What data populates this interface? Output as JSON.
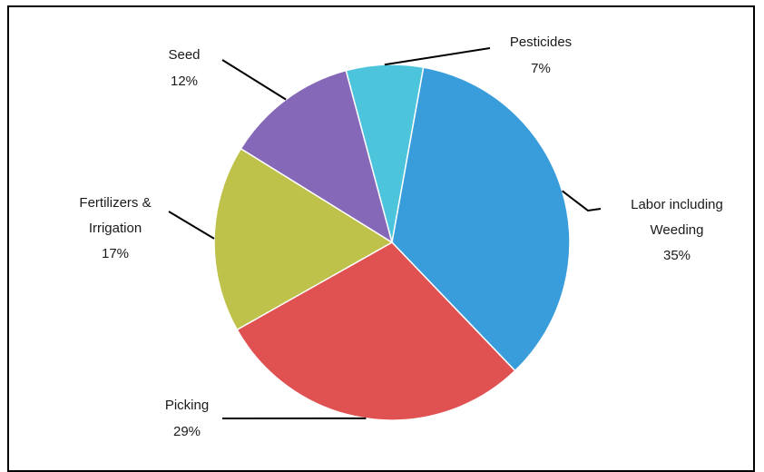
{
  "chart_data": {
    "type": "pie",
    "title": "",
    "slices": [
      {
        "label": "Pesticides",
        "value": 7,
        "percent_label": "7%",
        "color": "#4BC4DC"
      },
      {
        "label": "Labor including Weeding",
        "label_lines": [
          "Labor including",
          "Weeding"
        ],
        "value": 35,
        "percent_label": "35%",
        "color": "#3A9DDB"
      },
      {
        "label": "Picking",
        "value": 29,
        "percent_label": "29%",
        "color": "#E05252"
      },
      {
        "label": "Fertilizers & Irrigation",
        "label_lines": [
          "Fertilizers &",
          "Irrigation"
        ],
        "value": 17,
        "percent_label": "17%",
        "color": "#BFC24A"
      },
      {
        "label": "Seed",
        "value": 12,
        "percent_label": "12%",
        "color": "#8668B8"
      }
    ],
    "legend": "none",
    "data_labels": "outside with leader lines"
  }
}
